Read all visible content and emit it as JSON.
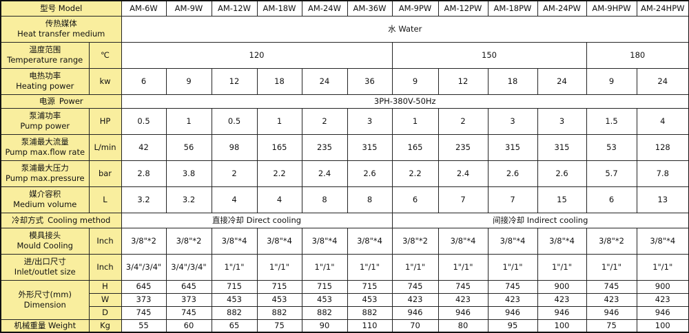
{
  "header": {
    "label": "型号 Model",
    "models": [
      "AM-6W",
      "AM-9W",
      "AM-12W",
      "AM-18W",
      "AM-24W",
      "AM-36W",
      "AM-9PW",
      "AM-12PW",
      "AM-18PW",
      "AM-24PW",
      "AM-9HPW",
      "AM-24HPW"
    ]
  },
  "rows": [
    {
      "cn": "传热媒体",
      "en": "Heat transfer medium",
      "unit": null,
      "h": 38,
      "values": [
        {
          "text": "水 Water",
          "span": 12
        }
      ]
    },
    {
      "cn": "温度范围",
      "en": "Temperature range",
      "unit": "℃",
      "h": 38,
      "values": [
        {
          "text": "120",
          "span": 6
        },
        {
          "text": "150",
          "span": 4
        },
        {
          "text": "180",
          "span": 2
        }
      ]
    },
    {
      "cn": "电热功率",
      "en": "Heating power",
      "unit": "kw",
      "h": 38,
      "values": [
        {
          "text": "6"
        },
        {
          "text": "9"
        },
        {
          "text": "12"
        },
        {
          "text": "18"
        },
        {
          "text": "24"
        },
        {
          "text": "36"
        },
        {
          "text": "9"
        },
        {
          "text": "12"
        },
        {
          "text": "18"
        },
        {
          "text": "24"
        },
        {
          "text": "9"
        },
        {
          "text": "24"
        }
      ]
    },
    {
      "cn": "电源",
      "en": "Power",
      "inline": true,
      "unit": null,
      "h": 20,
      "values": [
        {
          "text": "3PH-380V-50Hz",
          "span": 12
        }
      ]
    },
    {
      "cn": "泵浦功率",
      "en": "Pump power",
      "unit": "HP",
      "h": 38,
      "values": [
        {
          "text": "0.5"
        },
        {
          "text": "1"
        },
        {
          "text": "0.5"
        },
        {
          "text": "1"
        },
        {
          "text": "2"
        },
        {
          "text": "3"
        },
        {
          "text": "1"
        },
        {
          "text": "2"
        },
        {
          "text": "3"
        },
        {
          "text": "3"
        },
        {
          "text": "1.5"
        },
        {
          "text": "4"
        }
      ]
    },
    {
      "cn": "泵浦最大流量",
      "en": "Pump max.flow rate",
      "unit": "L/min",
      "h": 38,
      "values": [
        {
          "text": "42"
        },
        {
          "text": "56"
        },
        {
          "text": "98"
        },
        {
          "text": "165"
        },
        {
          "text": "235"
        },
        {
          "text": "315"
        },
        {
          "text": "165"
        },
        {
          "text": "235"
        },
        {
          "text": "315"
        },
        {
          "text": "315"
        },
        {
          "text": "53"
        },
        {
          "text": "128"
        }
      ]
    },
    {
      "cn": "泵浦最大压力",
      "en": "Pump max.pressure",
      "unit": "bar",
      "h": 38,
      "values": [
        {
          "text": "2.8"
        },
        {
          "text": "3.8"
        },
        {
          "text": "2"
        },
        {
          "text": "2.2"
        },
        {
          "text": "2.4"
        },
        {
          "text": "2.6"
        },
        {
          "text": "2.2"
        },
        {
          "text": "2.4"
        },
        {
          "text": "2.6"
        },
        {
          "text": "2.6"
        },
        {
          "text": "5.7"
        },
        {
          "text": "7.8"
        }
      ]
    },
    {
      "cn": "媒介容积",
      "en": "Medium volume",
      "unit": "L",
      "h": 38,
      "values": [
        {
          "text": "3.2"
        },
        {
          "text": "3.2"
        },
        {
          "text": "4"
        },
        {
          "text": "4"
        },
        {
          "text": "8"
        },
        {
          "text": "8"
        },
        {
          "text": "6"
        },
        {
          "text": "7"
        },
        {
          "text": "7"
        },
        {
          "text": "15"
        },
        {
          "text": "6"
        },
        {
          "text": "13"
        }
      ]
    },
    {
      "cn": "冷却方式",
      "en": "Cooling method",
      "inline": true,
      "unit": null,
      "h": 22,
      "values": [
        {
          "text": "直接冷却 Direct cooling",
          "span": 6
        },
        {
          "text": "间接冷却 Indirect cooling",
          "span": 6
        }
      ]
    },
    {
      "cn": "模具接头",
      "en": "Mould Cooling",
      "unit": "Inch",
      "h": 38,
      "values": [
        {
          "text": "3/8\"*2"
        },
        {
          "text": "3/8\"*2"
        },
        {
          "text": "3/8\"*4"
        },
        {
          "text": "3/8\"*4"
        },
        {
          "text": "3/8\"*4"
        },
        {
          "text": "3/8\"*4"
        },
        {
          "text": "3/8\"*2"
        },
        {
          "text": "3/8\"*4"
        },
        {
          "text": "3/8\"*4"
        },
        {
          "text": "3/8\"*4"
        },
        {
          "text": "3/8\"*2"
        },
        {
          "text": "3/8\"*4"
        }
      ]
    },
    {
      "cn": "进/出口尺寸",
      "en": "Inlet/outlet size",
      "unit": "Inch",
      "h": 38,
      "values": [
        {
          "text": "3/4\"/3/4\""
        },
        {
          "text": "3/4\"/3/4\""
        },
        {
          "text": "1\"/1\""
        },
        {
          "text": "1\"/1\""
        },
        {
          "text": "1\"/1\""
        },
        {
          "text": "1\"/1\""
        },
        {
          "text": "1\"/1\""
        },
        {
          "text": "1\"/1\""
        },
        {
          "text": "1\"/1\""
        },
        {
          "text": "1\"/1\""
        },
        {
          "text": "1\"/1\""
        },
        {
          "text": "1\"/1\""
        }
      ]
    }
  ],
  "dimension": {
    "cn": "外形尺寸(mm)",
    "en": "Dimension",
    "rows": [
      {
        "unit": "H",
        "values": [
          "645",
          "645",
          "715",
          "715",
          "715",
          "715",
          "745",
          "745",
          "745",
          "900",
          "745",
          "900"
        ]
      },
      {
        "unit": "W",
        "values": [
          "373",
          "373",
          "453",
          "453",
          "453",
          "453",
          "423",
          "423",
          "423",
          "423",
          "423",
          "423"
        ]
      },
      {
        "unit": "D",
        "values": [
          "745",
          "745",
          "882",
          "882",
          "882",
          "882",
          "946",
          "946",
          "946",
          "946",
          "946",
          "946"
        ]
      }
    ]
  },
  "weight": {
    "label": "机械重量  Weight",
    "unit": "Kg",
    "values": [
      "55",
      "60",
      "65",
      "75",
      "90",
      "110",
      "70",
      "80",
      "95",
      "100",
      "75",
      "100"
    ]
  }
}
